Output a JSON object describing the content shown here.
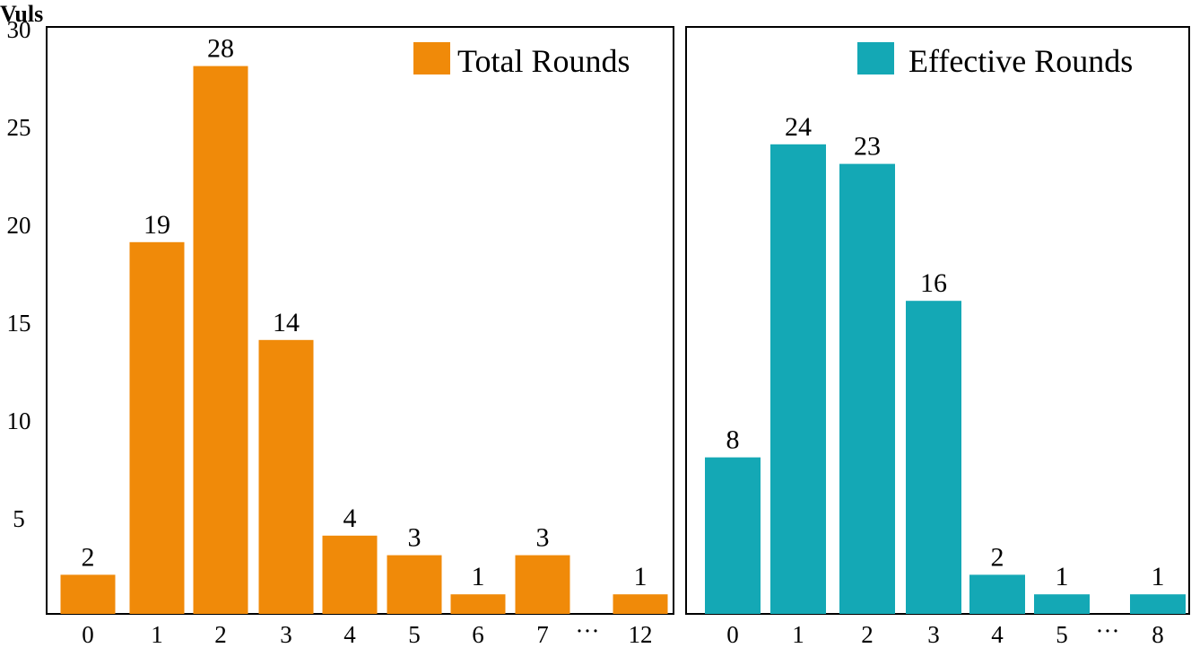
{
  "chart_data": [
    {
      "type": "bar",
      "ylabel": "Vuls",
      "ylim": [
        0,
        30
      ],
      "yticks": [
        5,
        10,
        15,
        20,
        25,
        30
      ],
      "categories": [
        "0",
        "1",
        "2",
        "3",
        "4",
        "5",
        "6",
        "7",
        "12"
      ],
      "ellipsis_label": "···",
      "series": [
        {
          "name": "Total Rounds",
          "color": "#f08a09",
          "values": [
            2,
            19,
            28,
            14,
            4,
            3,
            1,
            3,
            1
          ]
        }
      ],
      "legend": "top-right"
    },
    {
      "type": "bar",
      "ylim": [
        0,
        30
      ],
      "categories": [
        "0",
        "1",
        "2",
        "3",
        "4",
        "5",
        "8"
      ],
      "ellipsis_label": "···",
      "series": [
        {
          "name": "Effective Rounds",
          "color": "#14a8b5",
          "values": [
            8,
            24,
            23,
            16,
            2,
            1,
            1
          ]
        }
      ],
      "legend": "top-right"
    }
  ]
}
